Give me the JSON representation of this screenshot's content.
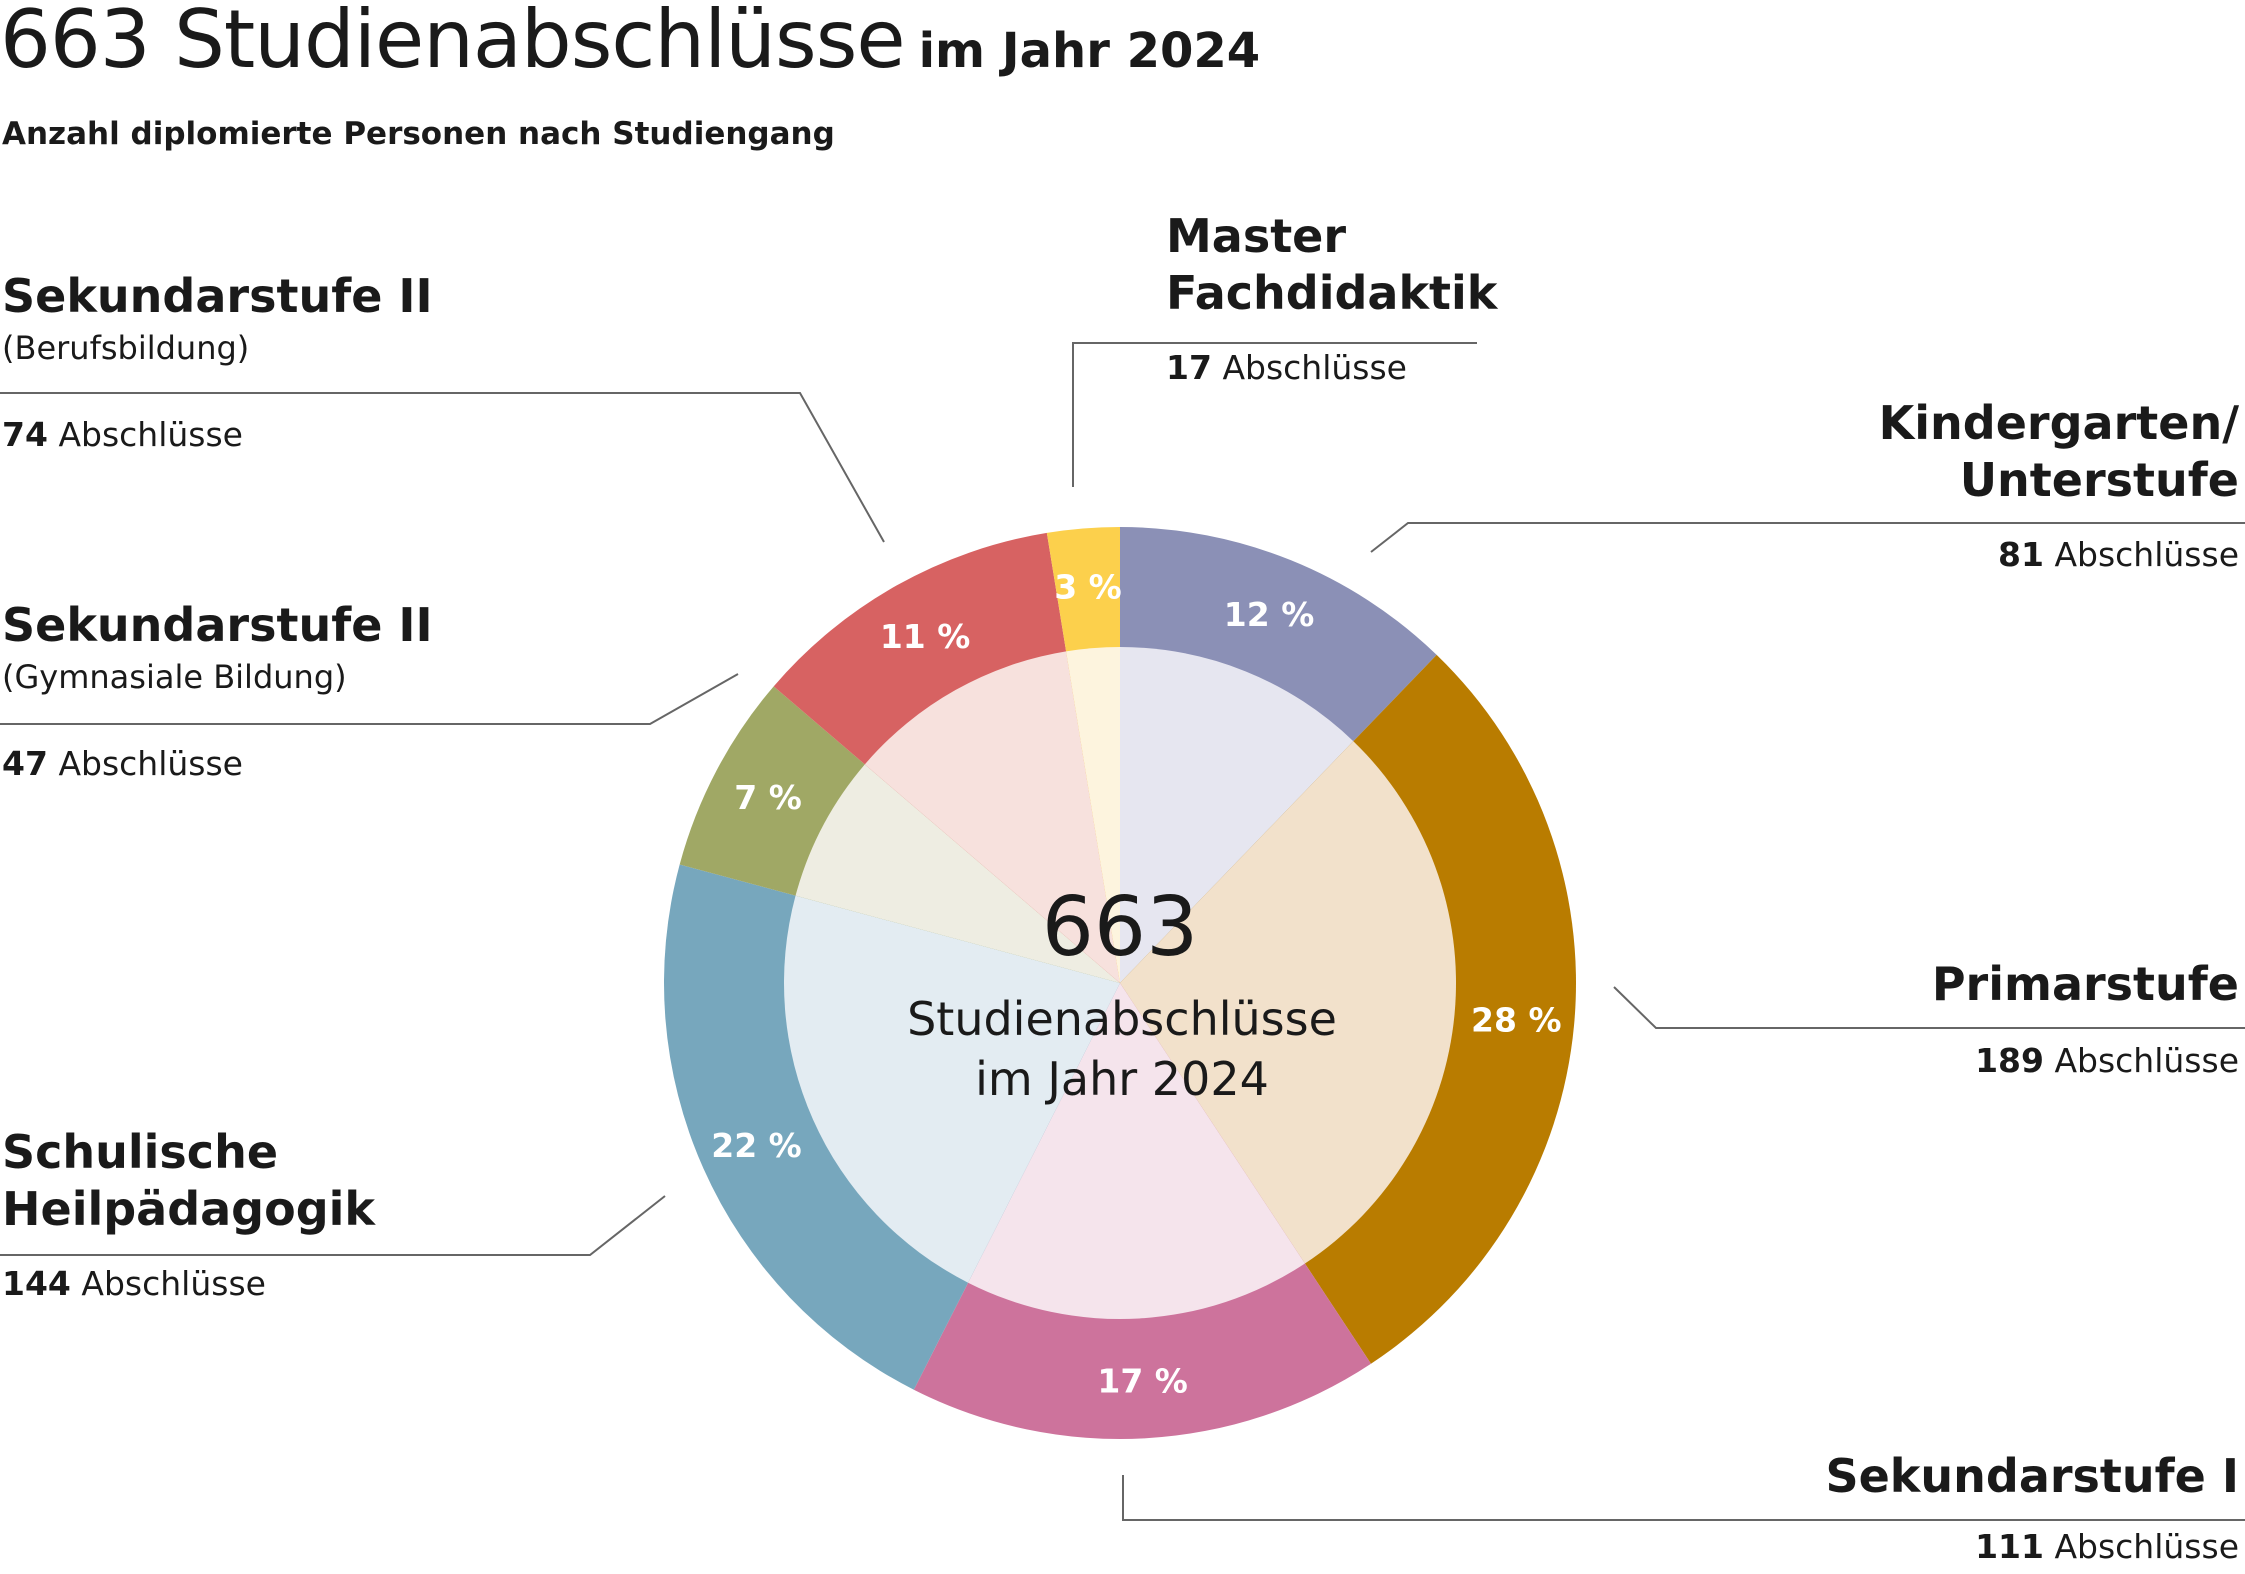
{
  "header": {
    "title_main": "663 Studienabschlüsse",
    "title_suffix": "im Jahr 2024",
    "subtitle": "Anzahl diplomierte Personen nach Studiengang"
  },
  "center": {
    "value": "663",
    "line1": "Studienabschlüsse",
    "line2": "im Jahr 2024"
  },
  "count_unit": "Abschlüsse",
  "labels": {
    "sek2_beruf": {
      "name": "Sekundarstufe II",
      "sub": "(Berufsbildung)",
      "count": "74"
    },
    "sek2_gym": {
      "name": "Sekundarstufe II",
      "sub": "(Gymnasiale Bildung)",
      "count": "47"
    },
    "heil": {
      "name1": "Schulische",
      "name2": "Heilpädagogik",
      "count": "144"
    },
    "master": {
      "name1": "Master",
      "name2": "Fachdidaktik",
      "count": "17"
    },
    "kiga": {
      "name1": "Kindergarten/",
      "name2": "Unterstufe",
      "count": "81"
    },
    "prim": {
      "name": "Primarstufe",
      "count": "189"
    },
    "sek1": {
      "name": "Sekundarstufe I",
      "count": "111"
    }
  },
  "chart_data": {
    "type": "pie",
    "variant": "donut",
    "total": 663,
    "start": "12 o'clock, clockwise",
    "segments": [
      {
        "key": "kiga",
        "value": 81,
        "pct_label": "12 %",
        "color": "#8b90b6",
        "inner_color": "#e6e6f0",
        "label_color": "#ffffff"
      },
      {
        "key": "prim",
        "value": 189,
        "pct_label": "28 %",
        "color": "#b97c00",
        "inner_color": "#f2e1cb",
        "label_color": "#ffffff"
      },
      {
        "key": "sek1",
        "value": 111,
        "pct_label": "17 %",
        "color": "#cd739c",
        "inner_color": "#f5e4ec",
        "label_color": "#ffffff"
      },
      {
        "key": "heil",
        "value": 144,
        "pct_label": "22 %",
        "color": "#77a7bd",
        "inner_color": "#e3ecf2",
        "label_color": "#ffffff"
      },
      {
        "key": "sek2_gym",
        "value": 47,
        "pct_label": "7 %",
        "color": "#a0a865",
        "inner_color": "#eeede2",
        "label_color": "#ffffff"
      },
      {
        "key": "sek2_beruf",
        "value": 74,
        "pct_label": "11 %",
        "color": "#d76262",
        "inner_color": "#f7e1dd",
        "label_color": "#ffffff"
      },
      {
        "key": "master",
        "value": 17,
        "pct_label": "3 %",
        "color": "#fcd04c",
        "inner_color": "#fdf4de",
        "label_color": "#ffffff"
      }
    ]
  }
}
